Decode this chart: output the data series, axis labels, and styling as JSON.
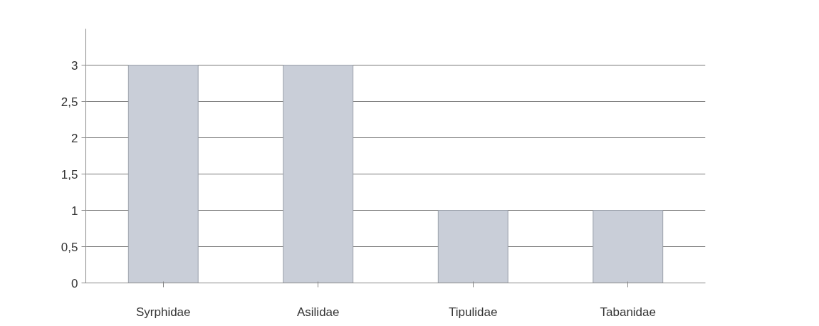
{
  "chart_data": {
    "type": "bar",
    "categories": [
      "Syrphidae",
      "Asilidae",
      "Tipulidae",
      "Tabanidae"
    ],
    "values": [
      3,
      3,
      1,
      1
    ],
    "color": "#c9ced8",
    "ylim": [
      0,
      3.5
    ],
    "yticks": [
      0,
      {
        "value": 0.5,
        "label": "0,5"
      },
      1,
      {
        "value": 1.5,
        "label": "1,5"
      },
      2,
      {
        "value": 2.5,
        "label": "2,5"
      },
      3
    ],
    "grid": "y"
  }
}
